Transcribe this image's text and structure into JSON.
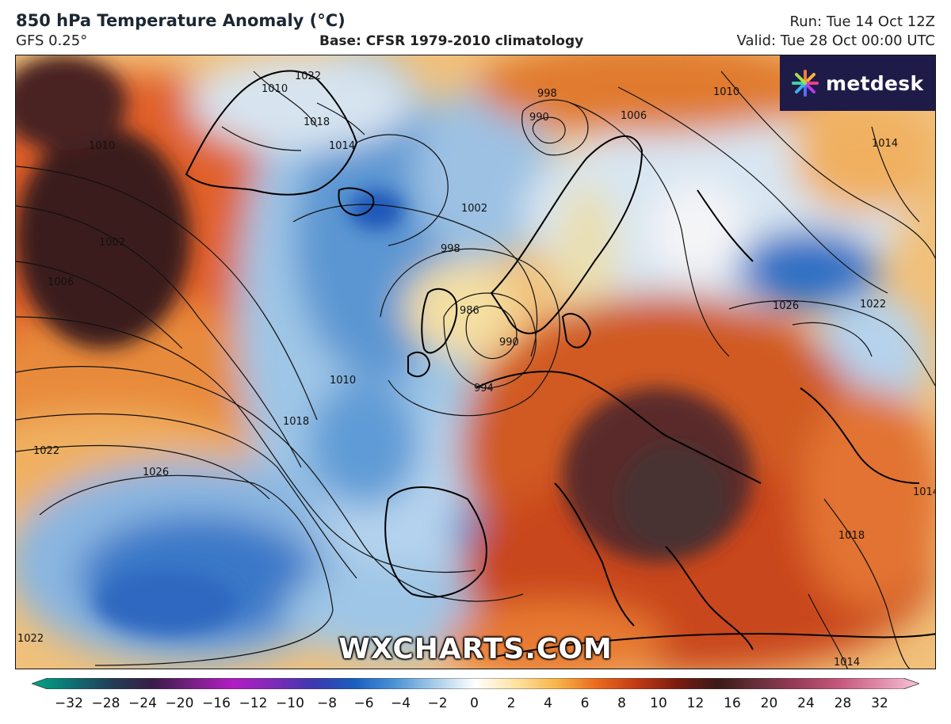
{
  "header": {
    "title": "850 hPa Temperature Anomaly (°C)",
    "model": "GFS 0.25°",
    "base": "Base: CFSR 1979-2010 climatology",
    "run": "Run: Tue 14 Oct 12Z",
    "valid": "Valid: Tue 28 Oct 00:00 UTC"
  },
  "logo": {
    "text": "metdesk",
    "icon": "pinwheel-icon"
  },
  "watermark": "WXCHARTS.COM",
  "isobar_labels": [
    "1010",
    "1022",
    "1018",
    "1014",
    "1010",
    "1002",
    "1006",
    "998",
    "990",
    "1006",
    "1010",
    "1014",
    "1002",
    "998",
    "986",
    "990",
    "994",
    "1010",
    "1018",
    "1022",
    "1026",
    "1026",
    "1022",
    "1018",
    "1014",
    "1014",
    "1022"
  ],
  "legend": {
    "ticks": [
      "−32",
      "−28",
      "−24",
      "−20",
      "−16",
      "−12",
      "−10",
      "−8",
      "−6",
      "−4",
      "−2",
      "0",
      "2",
      "4",
      "6",
      "8",
      "10",
      "12",
      "16",
      "20",
      "24",
      "28",
      "32"
    ],
    "colors": [
      "#00a884",
      "#0f6f74",
      "#233d55",
      "#3a1c47",
      "#7a1f86",
      "#b21cc4",
      "#7d2bb8",
      "#3c39b0",
      "#1a5fc0",
      "#4d93d6",
      "#a8cde9",
      "#ffffff",
      "#ffe2a0",
      "#f8b54a",
      "#ea6a1e",
      "#c23a14",
      "#7a1c10",
      "#3a1a18",
      "#6a2f3a",
      "#9b3c5a",
      "#c4587c",
      "#e08aa8",
      "#f6c4d6"
    ]
  }
}
